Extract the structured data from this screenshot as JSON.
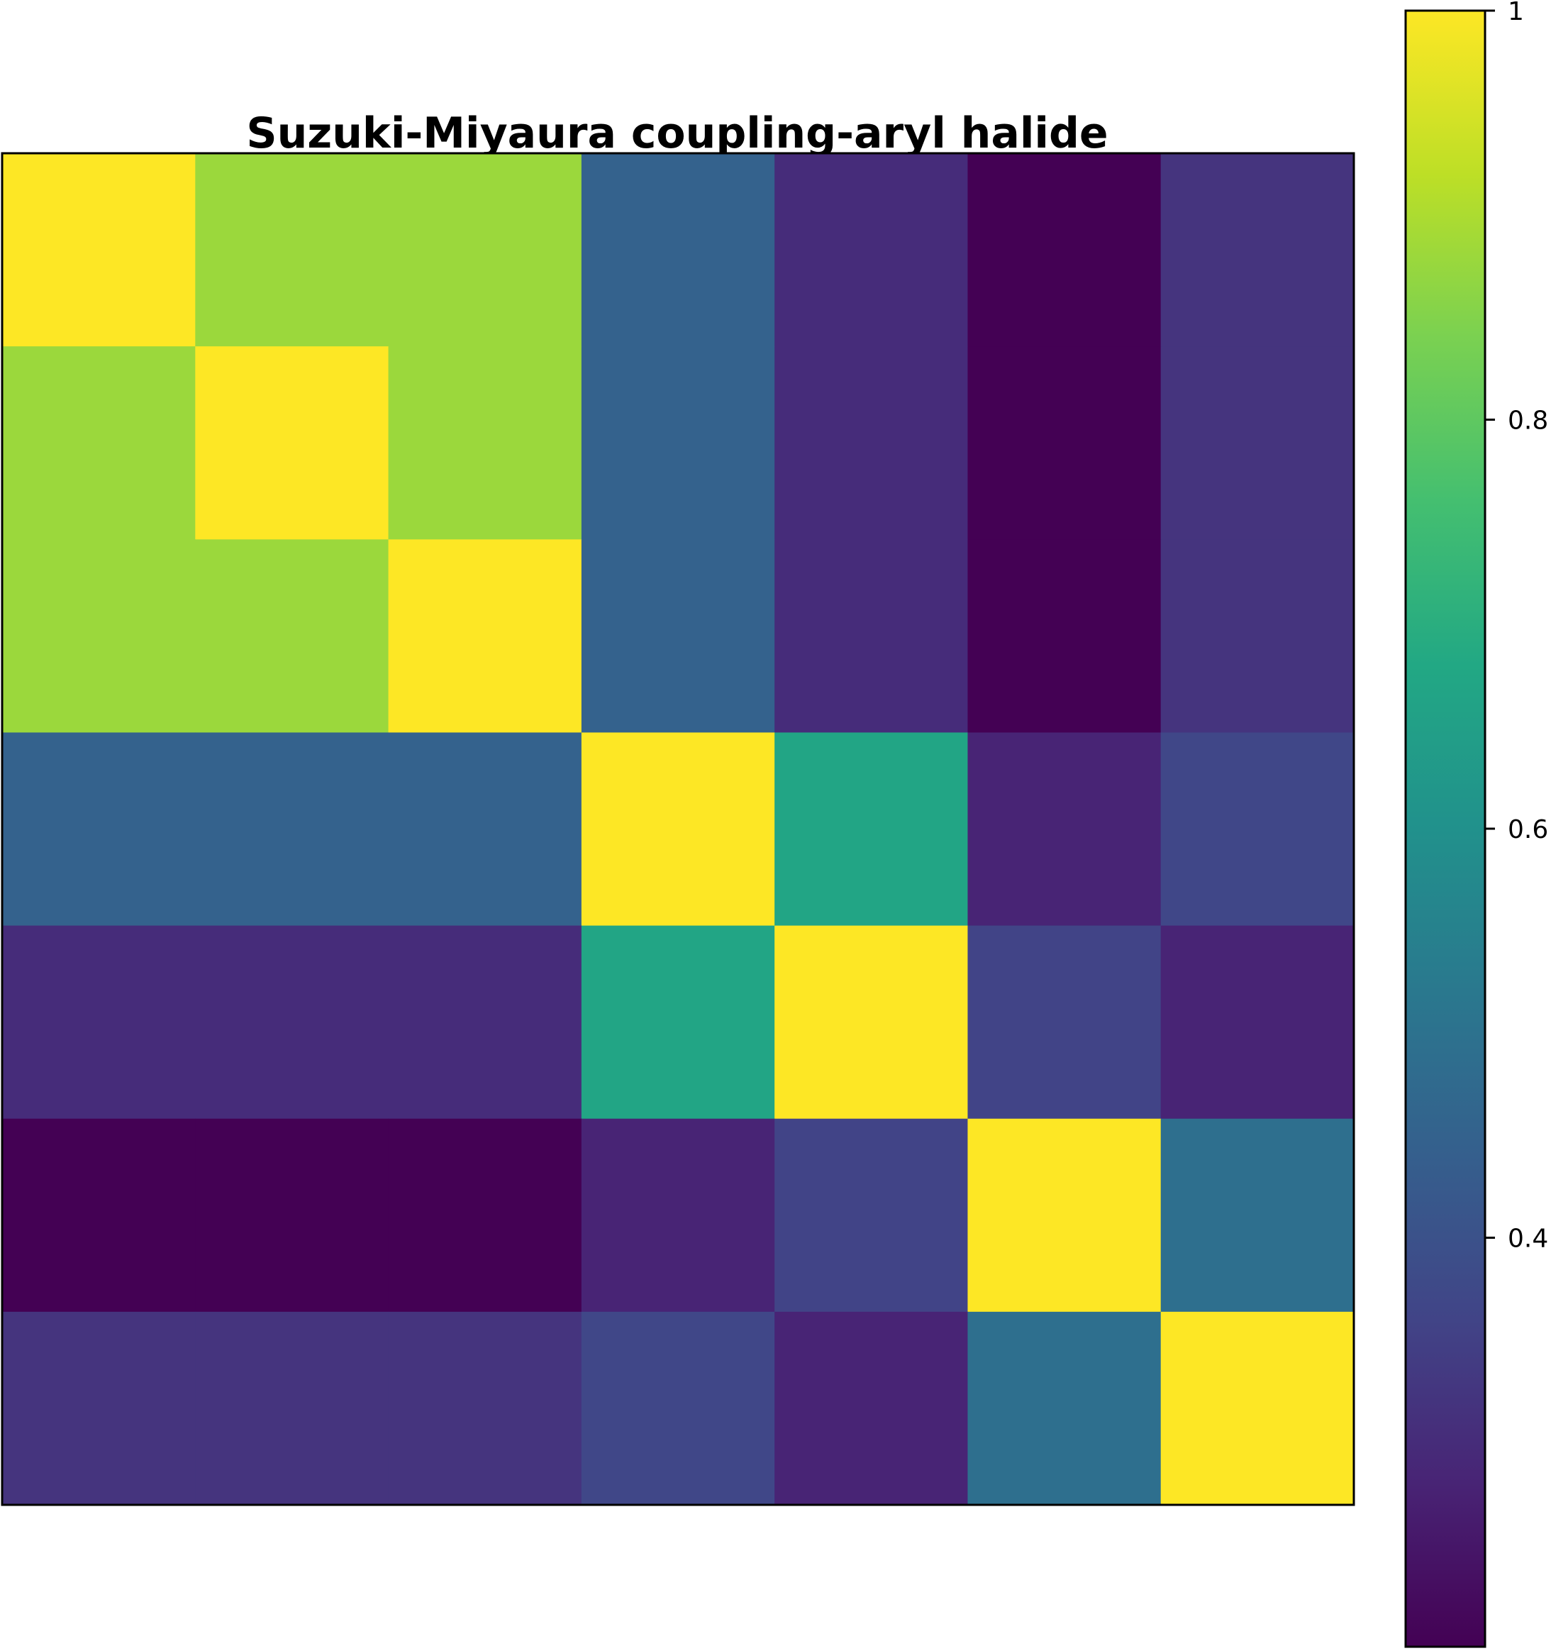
{
  "chart_data": {
    "type": "heatmap",
    "title": "Suzuki-Miyaura coupling-aryl halide",
    "xlabel": "",
    "ylabel": "",
    "rows": 7,
    "cols": 7,
    "values": [
      [
        1.0,
        0.88,
        0.88,
        0.45,
        0.3,
        0.2,
        0.32
      ],
      [
        0.88,
        1.0,
        0.88,
        0.45,
        0.3,
        0.2,
        0.32
      ],
      [
        0.88,
        0.88,
        1.0,
        0.45,
        0.3,
        0.2,
        0.32
      ],
      [
        0.45,
        0.45,
        0.45,
        1.0,
        0.67,
        0.28,
        0.37
      ],
      [
        0.3,
        0.3,
        0.3,
        0.67,
        1.0,
        0.36,
        0.28
      ],
      [
        0.2,
        0.2,
        0.2,
        0.28,
        0.36,
        1.0,
        0.49
      ],
      [
        0.32,
        0.32,
        0.32,
        0.37,
        0.28,
        0.49,
        1.0
      ]
    ],
    "colorbar": {
      "colormap": "viridis",
      "vmin": 0.2,
      "vmax": 1.0,
      "ticks": [
        {
          "value": 1.0,
          "label": "1"
        },
        {
          "value": 0.8,
          "label": "0.8"
        },
        {
          "value": 0.6,
          "label": "0.6"
        },
        {
          "value": 0.4,
          "label": "0.4"
        }
      ]
    },
    "grid": false,
    "legend": "none"
  }
}
